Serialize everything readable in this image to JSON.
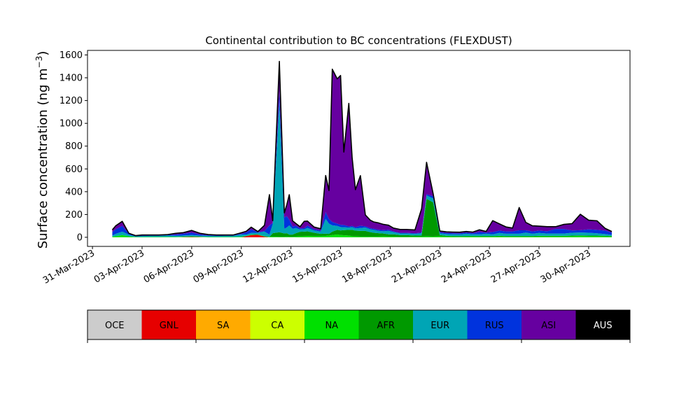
{
  "chart_data": {
    "type": "area",
    "title": "Continental contribution to BC concentrations (FLEXDUST)",
    "ylabel": "Surface concentration (ng m",
    "ylabel_sup": "−3",
    "ylabel_close": ")",
    "xlabel": "",
    "xlim_days": [
      -0.3,
      32.5
    ],
    "ylim": [
      -80,
      1640
    ],
    "yticks": [
      0,
      200,
      400,
      600,
      800,
      1000,
      1200,
      1400,
      1600
    ],
    "xtick_labels": [
      "31-Mar-2023",
      "03-Apr-2023",
      "06-Apr-2023",
      "09-Apr-2023",
      "12-Apr-2023",
      "15-Apr-2023",
      "18-Apr-2023",
      "21-Apr-2023",
      "24-Apr-2023",
      "27-Apr-2023",
      "30-Apr-2023"
    ],
    "x": [
      1.2,
      1.4,
      1.8,
      2.2,
      2.6,
      3.0,
      3.5,
      4.0,
      4.5,
      5.0,
      5.5,
      6.0,
      6.5,
      7.0,
      7.5,
      8.0,
      8.5,
      9.0,
      9.3,
      9.6,
      10.0,
      10.4,
      10.7,
      10.9,
      11.3,
      11.6,
      11.75,
      11.9,
      12.1,
      12.3,
      12.55,
      12.8,
      13.0,
      13.4,
      13.8,
      14.1,
      14.3,
      14.5,
      14.8,
      15.0,
      15.2,
      15.5,
      15.7,
      15.9,
      16.2,
      16.5,
      16.8,
      17.0,
      17.3,
      17.6,
      17.9,
      18.2,
      18.6,
      19.0,
      19.5,
      19.9,
      20.2,
      20.6,
      21.0,
      21.4,
      21.8,
      22.2,
      22.6,
      23.0,
      23.4,
      23.8,
      24.2,
      24.6,
      25.0,
      25.4,
      25.8,
      26.2,
      26.6,
      27.0,
      27.5,
      28.0,
      28.5,
      29.0,
      29.5,
      30.0,
      30.5,
      31.0,
      31.4
    ],
    "series": [
      {
        "name": "OCE",
        "color": "#cccccc",
        "values": [
          0,
          0,
          0,
          0,
          0,
          0,
          0,
          0,
          0,
          0,
          0,
          0,
          0,
          0,
          0,
          0,
          0,
          0,
          0,
          0,
          0,
          0,
          0,
          0,
          0,
          0,
          0,
          0,
          0,
          0,
          0,
          0,
          0,
          0,
          0,
          0,
          0,
          0,
          0,
          0,
          0,
          0,
          0,
          0,
          0,
          0,
          0,
          0,
          0,
          0,
          0,
          0,
          0,
          0,
          0,
          0,
          0,
          0,
          0,
          0,
          0,
          0,
          0,
          0,
          0,
          0,
          0,
          0,
          0,
          0,
          0,
          0,
          0,
          0,
          0,
          0,
          0,
          0,
          0,
          0,
          0,
          0,
          0
        ]
      },
      {
        "name": "GNL",
        "color": "#e60000",
        "values": [
          0,
          0,
          0,
          0,
          0,
          0,
          0,
          0,
          0,
          0,
          2,
          3,
          2,
          0,
          0,
          0,
          0,
          0,
          10,
          20,
          22,
          5,
          0,
          0,
          0,
          0,
          0,
          0,
          0,
          0,
          0,
          0,
          0,
          0,
          0,
          0,
          0,
          0,
          0,
          0,
          0,
          0,
          0,
          0,
          0,
          0,
          0,
          0,
          0,
          0,
          0,
          0,
          0,
          0,
          0,
          0,
          0,
          0,
          0,
          0,
          0,
          0,
          0,
          0,
          0,
          0,
          0,
          0,
          0,
          0,
          0,
          0,
          0,
          0,
          0,
          0,
          0,
          0,
          0,
          0,
          0,
          0,
          0
        ]
      },
      {
        "name": "SA",
        "color": "#ffaa00",
        "values": [
          0,
          0,
          0,
          0,
          0,
          0,
          0,
          0,
          0,
          0,
          0,
          0,
          0,
          0,
          0,
          0,
          0,
          0,
          0,
          0,
          0,
          0,
          0,
          0,
          0,
          0,
          0,
          0,
          0,
          0,
          0,
          0,
          0,
          0,
          0,
          0,
          0,
          0,
          0,
          0,
          0,
          0,
          0,
          0,
          0,
          0,
          0,
          0,
          0,
          0,
          0,
          0,
          0,
          0,
          0,
          0,
          0,
          0,
          0,
          0,
          0,
          0,
          0,
          0,
          0,
          0,
          0,
          0,
          0,
          0,
          0,
          0,
          0,
          0,
          0,
          0,
          0,
          0,
          0,
          0,
          0,
          0,
          0
        ]
      },
      {
        "name": "CA",
        "color": "#ccff00",
        "values": [
          0,
          0,
          0,
          0,
          0,
          0,
          0,
          0,
          0,
          0,
          0,
          0,
          0,
          0,
          0,
          0,
          0,
          0,
          0,
          0,
          0,
          0,
          0,
          0,
          0,
          0,
          0,
          0,
          0,
          0,
          0,
          0,
          0,
          0,
          0,
          0,
          0,
          0,
          0,
          0,
          0,
          0,
          0,
          0,
          0,
          0,
          0,
          0,
          0,
          0,
          0,
          0,
          0,
          0,
          0,
          0,
          0,
          0,
          0,
          0,
          0,
          0,
          0,
          0,
          0,
          0,
          0,
          0,
          0,
          0,
          0,
          0,
          0,
          0,
          0,
          0,
          0,
          0,
          0,
          0,
          0,
          0,
          0
        ]
      },
      {
        "name": "NA",
        "color": "#00e000",
        "values": [
          5,
          10,
          20,
          8,
          3,
          3,
          3,
          3,
          4,
          4,
          4,
          5,
          3,
          3,
          3,
          3,
          3,
          5,
          3,
          4,
          3,
          5,
          4,
          6,
          4,
          4,
          6,
          4,
          4,
          6,
          8,
          10,
          12,
          10,
          10,
          12,
          15,
          20,
          25,
          20,
          18,
          15,
          10,
          8,
          6,
          6,
          5,
          5,
          6,
          8,
          6,
          6,
          4,
          4,
          5,
          6,
          8,
          6,
          10,
          8,
          6,
          5,
          6,
          6,
          6,
          6,
          6,
          8,
          6,
          6,
          6,
          6,
          6,
          8,
          8,
          8,
          8,
          10,
          12,
          10,
          10,
          8,
          6
        ]
      },
      {
        "name": "AFR",
        "color": "#009900",
        "values": [
          0,
          0,
          0,
          0,
          0,
          0,
          0,
          0,
          0,
          0,
          0,
          0,
          0,
          0,
          0,
          0,
          0,
          0,
          0,
          0,
          0,
          0,
          0,
          30,
          40,
          30,
          30,
          20,
          20,
          30,
          40,
          40,
          40,
          30,
          20,
          20,
          15,
          30,
          40,
          40,
          45,
          50,
          55,
          50,
          50,
          50,
          40,
          35,
          30,
          25,
          20,
          20,
          15,
          15,
          10,
          10,
          330,
          300,
          10,
          5,
          5,
          5,
          5,
          5,
          5,
          5,
          5,
          5,
          5,
          5,
          5,
          5,
          5,
          5,
          5,
          5,
          5,
          5,
          5,
          5,
          5,
          5,
          5
        ]
      },
      {
        "name": "EUR",
        "color": "#00a5b5",
        "values": [
          10,
          20,
          30,
          15,
          5,
          8,
          10,
          10,
          12,
          10,
          10,
          12,
          10,
          10,
          8,
          10,
          10,
          20,
          10,
          15,
          15,
          40,
          20,
          80,
          1140,
          40,
          50,
          80,
          50,
          45,
          20,
          20,
          30,
          20,
          20,
          130,
          90,
          55,
          35,
          30,
          25,
          20,
          25,
          20,
          25,
          30,
          25,
          25,
          20,
          20,
          30,
          20,
          15,
          15,
          15,
          20,
          30,
          35,
          15,
          15,
          15,
          15,
          20,
          15,
          15,
          20,
          15,
          25,
          20,
          20,
          20,
          30,
          20,
          25,
          20,
          20,
          20,
          25,
          25,
          25,
          20,
          15,
          10
        ]
      },
      {
        "name": "RUS",
        "color": "#0033dd",
        "values": [
          30,
          40,
          50,
          10,
          5,
          5,
          5,
          5,
          5,
          10,
          15,
          20,
          10,
          5,
          5,
          5,
          5,
          5,
          20,
          30,
          5,
          5,
          80,
          10,
          100,
          100,
          100,
          50,
          20,
          20,
          10,
          10,
          20,
          10,
          10,
          60,
          40,
          30,
          20,
          20,
          20,
          10,
          10,
          10,
          20,
          10,
          10,
          10,
          10,
          10,
          10,
          5,
          5,
          5,
          5,
          5,
          10,
          20,
          10,
          10,
          10,
          10,
          10,
          10,
          20,
          10,
          20,
          20,
          20,
          20,
          30,
          20,
          20,
          20,
          20,
          40,
          40,
          20,
          20,
          30,
          30,
          30,
          20
        ]
      },
      {
        "name": "ASI",
        "color": "#6600a0",
        "values": [
          20,
          30,
          40,
          2,
          2,
          4,
          2,
          2,
          2,
          10,
          10,
          20,
          10,
          6,
          4,
          2,
          2,
          10,
          10,
          20,
          5,
          50,
          270,
          20,
          260,
          40,
          100,
          220,
          50,
          20,
          15,
          60,
          40,
          20,
          15,
          320,
          250,
          1340,
          1270,
          1310,
          640,
          1080,
          600,
          330,
          440,
          100,
          70,
          60,
          60,
          50,
          40,
          30,
          30,
          30,
          30,
          210,
          280,
          20,
          10,
          10,
          10,
          10,
          10,
          10,
          20,
          10,
          100,
          60,
          40,
          30,
          200,
          70,
          50,
          40,
          40,
          20,
          40,
          60,
          140,
          80,
          80,
          20,
          10
        ]
      },
      {
        "name": "AUS",
        "color": "#000000",
        "values": [
          0,
          0,
          0,
          0,
          0,
          0,
          0,
          0,
          0,
          0,
          0,
          0,
          0,
          0,
          0,
          0,
          0,
          0,
          0,
          0,
          0,
          0,
          0,
          0,
          0,
          0,
          0,
          0,
          0,
          0,
          0,
          0,
          0,
          0,
          0,
          0,
          0,
          0,
          0,
          0,
          0,
          0,
          0,
          0,
          0,
          0,
          0,
          0,
          0,
          0,
          0,
          0,
          0,
          0,
          0,
          0,
          0,
          0,
          0,
          0,
          0,
          0,
          0,
          0,
          0,
          0,
          0,
          0,
          0,
          0,
          0,
          0,
          0,
          0,
          0,
          0,
          0,
          0,
          0,
          0,
          0,
          0,
          0
        ]
      }
    ],
    "legend": {
      "placement": "bottom",
      "entries": [
        {
          "label": "OCE",
          "color": "#cccccc",
          "text_color": "#000000"
        },
        {
          "label": "GNL",
          "color": "#e60000",
          "text_color": "#000000"
        },
        {
          "label": "SA",
          "color": "#ffaa00",
          "text_color": "#000000"
        },
        {
          "label": "CA",
          "color": "#ccff00",
          "text_color": "#000000"
        },
        {
          "label": "NA",
          "color": "#00e000",
          "text_color": "#000000"
        },
        {
          "label": "AFR",
          "color": "#009900",
          "text_color": "#000000"
        },
        {
          "label": "EUR",
          "color": "#00a5b5",
          "text_color": "#000000"
        },
        {
          "label": "RUS",
          "color": "#0033dd",
          "text_color": "#000000"
        },
        {
          "label": "ASI",
          "color": "#6600a0",
          "text_color": "#000000"
        },
        {
          "label": "AUS",
          "color": "#000000",
          "text_color": "#ffffff"
        }
      ]
    },
    "grid": false
  }
}
